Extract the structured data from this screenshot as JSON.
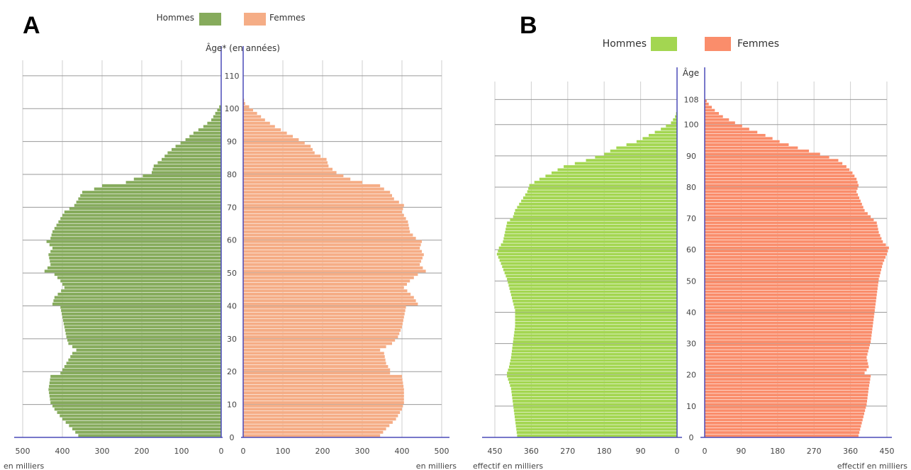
{
  "chart_data": [
    {
      "type": "bar",
      "panel": "A",
      "orientation": "horizontal-pyramid",
      "legend": [
        {
          "label": "Hommes",
          "color": "#86ab5c"
        },
        {
          "label": "Femmes",
          "color": "#f5ad86"
        }
      ],
      "age_axis_label": "Âge* (en années)",
      "age_ticks": [
        0,
        10,
        20,
        30,
        40,
        50,
        60,
        70,
        80,
        90,
        100,
        110
      ],
      "age_range": [
        0,
        110
      ],
      "x_ticks_left": [
        500,
        400,
        300,
        200,
        100,
        0
      ],
      "x_ticks_right": [
        0,
        100,
        200,
        300,
        400,
        500
      ],
      "xlim": [
        0,
        500
      ],
      "unit_left": "en milliers",
      "unit_right": "en milliers",
      "grid": true,
      "series": [
        {
          "name": "Hommes",
          "ages": [
            0,
            2,
            5,
            8,
            10,
            14,
            18,
            19,
            20,
            22,
            25,
            26,
            28,
            30,
            33,
            36,
            39,
            40,
            42,
            45,
            47,
            49,
            50,
            52,
            55,
            57,
            59,
            60,
            62,
            65,
            68,
            70,
            72,
            74,
            75,
            76,
            77,
            78,
            80,
            82,
            84,
            86,
            88,
            90,
            92,
            94,
            96,
            98,
            100,
            101
          ],
          "values": [
            360,
            375,
            400,
            420,
            430,
            435,
            430,
            405,
            400,
            390,
            375,
            365,
            385,
            390,
            395,
            400,
            405,
            425,
            420,
            395,
            405,
            420,
            445,
            430,
            435,
            425,
            440,
            430,
            425,
            410,
            395,
            370,
            360,
            350,
            320,
            300,
            240,
            220,
            175,
            170,
            150,
            135,
            115,
            90,
            70,
            45,
            25,
            15,
            5,
            0
          ]
        },
        {
          "name": "Femmes",
          "ages": [
            0,
            2,
            5,
            8,
            10,
            14,
            18,
            19,
            20,
            22,
            25,
            26,
            28,
            30,
            33,
            36,
            39,
            40,
            42,
            45,
            47,
            49,
            50,
            52,
            55,
            57,
            59,
            60,
            62,
            65,
            68,
            70,
            72,
            74,
            75,
            76,
            77,
            78,
            80,
            82,
            84,
            86,
            88,
            90,
            92,
            94,
            96,
            98,
            100,
            101,
            103
          ],
          "values": [
            345,
            360,
            385,
            400,
            405,
            405,
            400,
            370,
            370,
            360,
            355,
            345,
            375,
            390,
            400,
            405,
            410,
            440,
            430,
            405,
            420,
            440,
            460,
            445,
            455,
            445,
            450,
            435,
            420,
            415,
            400,
            405,
            380,
            370,
            355,
            345,
            300,
            270,
            235,
            215,
            210,
            180,
            170,
            140,
            110,
            80,
            55,
            35,
            15,
            5,
            0
          ]
        }
      ]
    },
    {
      "type": "bar",
      "panel": "B",
      "orientation": "horizontal-pyramid",
      "legend": [
        {
          "label": "Hommes",
          "color": "#a3d651"
        },
        {
          "label": "Femmes",
          "color": "#fa8d6b"
        }
      ],
      "age_axis_label": "Âge",
      "age_ticks": [
        0,
        10,
        20,
        30,
        40,
        50,
        60,
        70,
        80,
        90,
        100,
        108
      ],
      "age_range": [
        0,
        108
      ],
      "x_ticks_left": [
        450,
        360,
        270,
        180,
        90,
        0
      ],
      "x_ticks_right": [
        0,
        90,
        180,
        270,
        360,
        450
      ],
      "xlim": [
        0,
        450
      ],
      "unit_left": "effectif en milliers",
      "unit_right": "effectif en milliers",
      "grid": true,
      "series": [
        {
          "name": "Hommes",
          "ages": [
            0,
            5,
            10,
            15,
            19,
            20,
            22,
            25,
            30,
            35,
            40,
            45,
            50,
            55,
            58,
            60,
            62,
            65,
            68,
            70,
            72,
            75,
            78,
            80,
            82,
            84,
            86,
            88,
            90,
            92,
            94,
            96,
            98,
            100,
            102,
            104
          ],
          "values": [
            395,
            400,
            405,
            410,
            420,
            420,
            415,
            410,
            405,
            400,
            400,
            410,
            420,
            435,
            445,
            440,
            430,
            425,
            420,
            405,
            400,
            385,
            370,
            365,
            340,
            310,
            280,
            225,
            180,
            150,
            100,
            70,
            40,
            15,
            5,
            0
          ]
        },
        {
          "name": "Femmes",
          "ages": [
            0,
            5,
            10,
            15,
            19,
            20,
            22,
            25,
            30,
            35,
            40,
            45,
            50,
            55,
            58,
            60,
            62,
            65,
            68,
            70,
            72,
            75,
            78,
            80,
            82,
            84,
            86,
            88,
            90,
            92,
            94,
            96,
            98,
            100,
            102,
            104,
            106,
            108
          ],
          "values": [
            380,
            390,
            400,
            405,
            410,
            395,
            405,
            400,
            410,
            415,
            420,
            425,
            430,
            440,
            450,
            455,
            440,
            430,
            425,
            410,
            395,
            385,
            375,
            380,
            375,
            365,
            350,
            330,
            285,
            230,
            185,
            150,
            110,
            75,
            45,
            25,
            10,
            0
          ]
        }
      ]
    }
  ]
}
